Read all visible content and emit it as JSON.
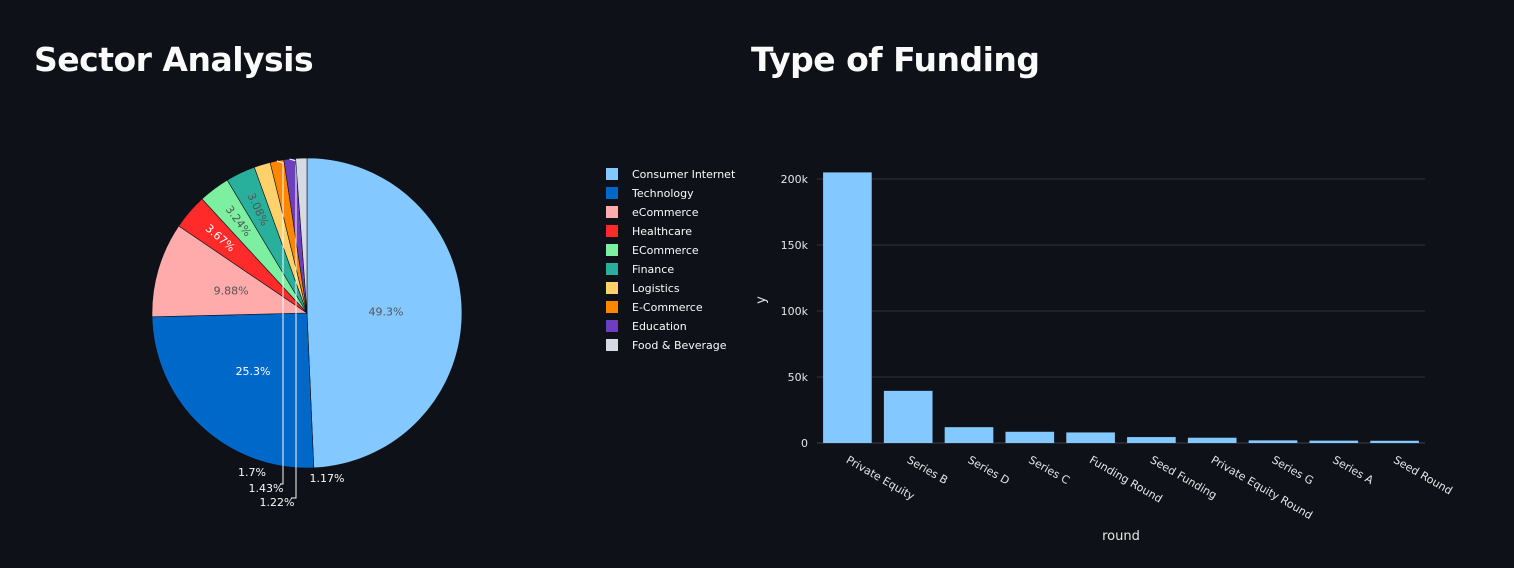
{
  "pie_title": "Sector Analysis",
  "bar_title": "Type of Funding",
  "chart_data": [
    {
      "type": "pie",
      "title": "Sector Analysis",
      "legend_position": "right",
      "slices": [
        {
          "name": "Consumer Internet",
          "value": 49.3,
          "label": "49.3%",
          "color": "#83c9ff",
          "text_color": "#555555"
        },
        {
          "name": "Technology",
          "value": 25.3,
          "label": "25.3%",
          "color": "#0068c9",
          "text_color": "#ffffff"
        },
        {
          "name": "eCommerce",
          "value": 9.88,
          "label": "9.88%",
          "color": "#ffabab",
          "text_color": "#555555"
        },
        {
          "name": "Healthcare",
          "value": 3.67,
          "label": "3.67%",
          "color": "#ff2b2b",
          "text_color": "#ffffff"
        },
        {
          "name": "ECommerce",
          "value": 3.24,
          "label": "3.24%",
          "color": "#7defa1",
          "text_color": "#555555"
        },
        {
          "name": "Finance",
          "value": 3.08,
          "label": "3.08%",
          "color": "#29b09d",
          "text_color": "#555555"
        },
        {
          "name": "Logistics",
          "value": 1.7,
          "label": "1.7%",
          "color": "#ffd16a",
          "text_color": "#fafafa"
        },
        {
          "name": "E-Commerce",
          "value": 1.43,
          "label": "1.43%",
          "color": "#ff8700",
          "text_color": "#fafafa"
        },
        {
          "name": "Education",
          "value": 1.22,
          "label": "1.22%",
          "color": "#6d3fc0",
          "text_color": "#fafafa"
        },
        {
          "name": "Food & Beverage",
          "value": 1.17,
          "label": "1.17%",
          "color": "#d5dae5",
          "text_color": "#fafafa"
        }
      ]
    },
    {
      "type": "bar",
      "title": "Type of Funding",
      "xlabel": "round",
      "ylabel": "y",
      "ylim": [
        0,
        210000
      ],
      "yticks": [
        0,
        50000,
        100000,
        150000,
        200000
      ],
      "ytick_labels": [
        "0",
        "50k",
        "100k",
        "150k",
        "200k"
      ],
      "grid": true,
      "bar_color": "#83c9ff",
      "categories": [
        "Private Equity",
        "Series B",
        "Series D",
        "Series C",
        "Funding Round",
        "Seed Funding",
        "Private Equity Round",
        "Series G",
        "Series A",
        "Seed Round"
      ],
      "values": [
        205000,
        39500,
        12000,
        8500,
        8000,
        4500,
        4000,
        2000,
        1800,
        1700
      ]
    }
  ]
}
